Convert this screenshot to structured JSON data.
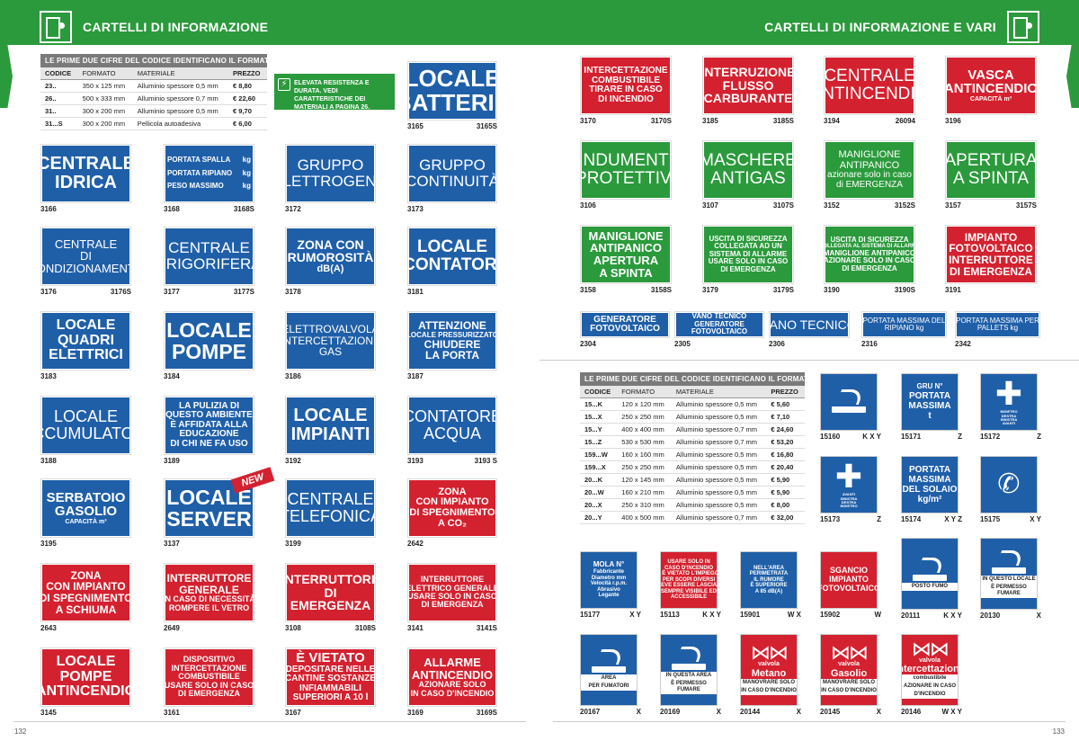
{
  "header": {
    "left_title": "CARTELLI DI INFORMAZIONE",
    "right_title": "CARTELLI DI INFORMAZIONE E VARI",
    "icon": "emergency-exit-icon"
  },
  "table_left": {
    "title": "LE PRIME DUE CIFRE DEL CODICE IDENTIFICANO IL FORMATO",
    "headers": [
      "CODICE",
      "FORMATO",
      "MATERIALE",
      "PREZZO"
    ],
    "rows": [
      [
        "23..",
        "350 x 125 mm",
        "Alluminio spessore 0,5 mm",
        "€ 8,80"
      ],
      [
        "26..",
        "500 x 333 mm",
        "Alluminio spessore 0,7 mm",
        "€ 22,60"
      ],
      [
        "31..",
        "300 x 200 mm",
        "Alluminio spessore 0,5 mm",
        "€ 9,70"
      ],
      [
        "31...S",
        "300 x 200 mm",
        "Pellicola autoadesiva",
        "€ 6,00"
      ]
    ]
  },
  "note": {
    "text": "ELEVATA RESISTENZA E DURATA. VEDI CARATTERISTICHE DEI MATERIALI A PAGINA 26.",
    "icon": "lightning-icon"
  },
  "new_badge": "NEW",
  "signs_left": [
    {
      "lines": [
        "LOCALE",
        "BATTERIE"
      ],
      "code": "3165",
      "code2": "3165S"
    },
    {
      "lines": [
        "CENTRALE",
        "IDRICA"
      ],
      "code": "3166",
      "code2": ""
    },
    {
      "lines": [
        "PORTATA SPALLA",
        "PORTATA RIPIANO",
        "PESO MASSIMO"
      ],
      "units": [
        "kg",
        "kg",
        "kg"
      ],
      "code": "3168",
      "code2": "3168S"
    },
    {
      "lines": [
        "GRUPPO",
        "ELETTROGENO"
      ],
      "code": "3172",
      "code2": ""
    },
    {
      "lines": [
        "GRUPPO",
        "CONTINUITÀ"
      ],
      "code": "3173",
      "code2": ""
    },
    {
      "lines": [
        "CENTRALE",
        "DI",
        "CONDIZIONAMENTO"
      ],
      "code": "3176",
      "code2": "3176S"
    },
    {
      "lines": [
        "CENTRALE",
        "FRIGORIFERA"
      ],
      "code": "3177",
      "code2": "3177S"
    },
    {
      "lines": [
        "ZONA CON",
        "RUMOROSITÀ",
        "dB(A)"
      ],
      "code": "3178",
      "code2": ""
    },
    {
      "lines": [
        "LOCALE",
        "CONTATORI"
      ],
      "code": "3181",
      "code2": ""
    },
    {
      "lines": [
        "LOCALE",
        "QUADRI",
        "ELETTRICI"
      ],
      "code": "3183",
      "code2": ""
    },
    {
      "lines": [
        "LOCALE",
        "POMPE"
      ],
      "code": "3184",
      "code2": ""
    },
    {
      "lines": [
        "ELETTROVALVOLA",
        "INTERCETTAZIONE",
        "GAS"
      ],
      "code": "3186",
      "code2": ""
    },
    {
      "lines": [
        "ATTENZIONE",
        "LOCALE PRESSURIZZATO",
        "CHIUDERE",
        "LA PORTA"
      ],
      "code": "3187",
      "code2": ""
    },
    {
      "lines": [
        "LOCALE",
        "ACCUMULATORI"
      ],
      "code": "3188",
      "code2": ""
    },
    {
      "lines": [
        "LA PULIZIA DI",
        "QUESTO AMBIENTE",
        "È AFFIDATA ALLA",
        "EDUCAZIONE",
        "DI CHI NE FA USO"
      ],
      "code": "3189",
      "code2": ""
    },
    {
      "lines": [
        "LOCALE",
        "IMPIANTI"
      ],
      "code": "3192",
      "code2": ""
    },
    {
      "lines": [
        "CONTATORE",
        "ACQUA"
      ],
      "code": "3193",
      "code2": "3193 S"
    },
    {
      "lines": [
        "SERBATOIO",
        "GASOLIO",
        "CAPACITÀ m³"
      ],
      "code": "3195",
      "code2": ""
    },
    {
      "lines": [
        "LOCALE",
        "SERVER"
      ],
      "code": "3137",
      "code2": ""
    },
    {
      "lines": [
        "CENTRALE",
        "TELEFONICA"
      ],
      "code": "3199",
      "code2": ""
    },
    {
      "lines": [
        "ZONA",
        "CON IMPIANTO",
        "DI SPEGNIMENTO",
        "A CO₂"
      ],
      "code": "2642",
      "code2": ""
    },
    {
      "lines": [
        "ZONA",
        "CON IMPIANTO",
        "DI SPEGNIMENTO",
        "A SCHIUMA"
      ],
      "code": "2643",
      "code2": ""
    },
    {
      "lines": [
        "INTERRUTTORE",
        "GENERALE",
        "IN CASO DI NECESSITÀ",
        "ROMPERE IL VETRO"
      ],
      "code": "2649",
      "code2": ""
    },
    {
      "lines": [
        "INTERRUTTORE",
        "DI",
        "EMERGENZA"
      ],
      "code": "3108",
      "code2": "3108S"
    },
    {
      "lines": [
        "INTERRUTTORE",
        "ELETTRICO GENERALE",
        "USARE SOLO IN CASO",
        "DI EMERGENZA"
      ],
      "code": "3141",
      "code2": "3141S"
    },
    {
      "lines": [
        "LOCALE",
        "POMPE",
        "ANTINCENDIO"
      ],
      "code": "3145",
      "code2": ""
    },
    {
      "lines": [
        "DISPOSITIVO",
        "INTERCETTAZIONE",
        "COMBUSTIBILE",
        "USARE SOLO IN CASO",
        "DI EMERGENZA"
      ],
      "code": "3161",
      "code2": ""
    },
    {
      "lines": [
        "È VIETATO",
        "DEPOSITARE NELLE",
        "CANTINE SOSTANZE",
        "INFIAMMABILI",
        "SUPERIORI A 10 l"
      ],
      "code": "3167",
      "code2": ""
    },
    {
      "lines": [
        "ALLARME",
        "ANTINCENDIO",
        "AZIONARE SOLO",
        "IN CASO D'INCENDIO"
      ],
      "code": "3169",
      "code2": "3169S"
    }
  ],
  "signs_right": [
    {
      "lines": [
        "INTERCETTAZIONE",
        "COMBUSTIBILE",
        "TIRARE IN CASO",
        "DI INCENDIO"
      ],
      "code": "3170",
      "code2": "3170S"
    },
    {
      "lines": [
        "INTERRUZIONE",
        "FLUSSO",
        "CARBURANTE"
      ],
      "code": "3185",
      "code2": "3185S"
    },
    {
      "lines": [
        "CENTRALE",
        "ANTINCENDIO"
      ],
      "code": "3194",
      "code2": "26094"
    },
    {
      "lines": [
        "VASCA",
        "ANTINCENDIO",
        "CAPACITÀ m³"
      ],
      "code": "3196",
      "code2": ""
    },
    {
      "lines": [
        "INDUMENTI",
        "PROTETTIVI"
      ],
      "code": "3106",
      "code2": ""
    },
    {
      "lines": [
        "MASCHERE",
        "ANTIGAS"
      ],
      "code": "3107",
      "code2": "3107S"
    },
    {
      "lines": [
        "MANIGLIONE",
        "ANTIPANICO",
        "azionare solo in caso",
        "di EMERGENZA"
      ],
      "code": "3152",
      "code2": "3152S"
    },
    {
      "lines": [
        "APERTURA",
        "A SPINTA"
      ],
      "code": "3157",
      "code2": "3157S"
    },
    {
      "lines": [
        "MANIGLIONE",
        "ANTIPANICO",
        "APERTURA",
        "A SPINTA"
      ],
      "code": "3158",
      "code2": "3158S"
    },
    {
      "lines": [
        "USCITA DI SICUREZZA",
        "COLLEGATA AD UN",
        "SISTEMA DI ALLARME",
        "USARE SOLO IN CASO",
        "DI EMERGENZA"
      ],
      "code": "3179",
      "code2": "3179S"
    },
    {
      "lines": [
        "USCITA DI SICUREZZA",
        "COLLEGATA AL SISTEMA DI ALLARME",
        "MANIGLIONE ANTIPANICO",
        "AZIONARE SOLO IN CASO",
        "DI EMERGENZA"
      ],
      "code": "3190",
      "code2": "3190S"
    },
    {
      "lines": [
        "IMPIANTO",
        "FOTOVOLTAICO",
        "INTERRUTTORE",
        "DI EMERGENZA"
      ],
      "code": "3191",
      "code2": ""
    },
    {
      "lines": [
        "GENERATORE",
        "FOTOVOLTAICO"
      ],
      "code": "2304",
      "code2": ""
    },
    {
      "lines": [
        "VANO TECNICO",
        "GENERATORE",
        "FOTOVOLTAICO"
      ],
      "code": "2305",
      "code2": ""
    },
    {
      "lines": [
        "VANO TECNICO"
      ],
      "code": "2306",
      "code2": ""
    },
    {
      "lines": [
        "PORTATA MASSIMA DEL",
        "RIPIANO kg"
      ],
      "code": "2316",
      "code2": ""
    },
    {
      "lines": [
        "PORTATA MASSIMA PER",
        "PALLETS kg"
      ],
      "code": "2342",
      "code2": ""
    }
  ],
  "table_right": {
    "title": "LE PRIME DUE CIFRE DEL CODICE IDENTIFICANO IL FORMATO",
    "headers": [
      "CODICE",
      "FORMATO",
      "MATERIALE",
      "PREZZO"
    ],
    "rows": [
      [
        "15...K",
        "120 x 120 mm",
        "Alluminio spessore 0,5 mm",
        "€ 5,60"
      ],
      [
        "15...X",
        "250 x 250 mm",
        "Alluminio spessore 0,5 mm",
        "€ 7,10"
      ],
      [
        "15...Y",
        "400 x 400 mm",
        "Alluminio spessore 0,7 mm",
        "€ 24,60"
      ],
      [
        "15...Z",
        "530 x 530 mm",
        "Alluminio spessore 0,7 mm",
        "€ 53,20"
      ],
      [
        "159...W",
        "160 x 160 mm",
        "Alluminio spessore 0,5 mm",
        "€ 16,80"
      ],
      [
        "159...X",
        "250 x 250 mm",
        "Alluminio spessore 0,5 mm",
        "€ 20,40"
      ],
      [
        "20...K",
        "120 x 145 mm",
        "Alluminio spessore 0,5 mm",
        "€ 5,90"
      ],
      [
        "20...W",
        "160 x 210 mm",
        "Alluminio spessore 0,5 mm",
        "€ 5,90"
      ],
      [
        "20...X",
        "250 x 310 mm",
        "Alluminio spessore 0,5 mm",
        "€ 8,00"
      ],
      [
        "20...Y",
        "400 x 500 mm",
        "Alluminio spessore 0,7 mm",
        "€ 32,00"
      ]
    ]
  },
  "icons_right": [
    {
      "icon": "no-smoking-area-icon",
      "text": [],
      "code": "15160",
      "sizes": "K X Y"
    },
    {
      "icon": "crane-load-icon",
      "text": [
        "GRU N°",
        "PORTATA",
        "MASSIMA",
        "t"
      ],
      "code": "15171",
      "sizes": "Z"
    },
    {
      "icon": "direction-arrows-icon",
      "text": [
        "INDIETRO",
        "DESTRA",
        "SINISTRA",
        "AVANTI"
      ],
      "code": "15172",
      "sizes": "Z"
    },
    {
      "icon": "direction-arrows-icon",
      "text": [
        "AVANTI",
        "SINISTRA",
        "DESTRA",
        "INDIETRO"
      ],
      "code": "15173",
      "sizes": "Z"
    },
    {
      "icon": "floor-load-icon",
      "text": [
        "PORTATA",
        "MASSIMA",
        "DEL SOLAIO",
        "kg/m²"
      ],
      "code": "15174",
      "sizes": "X Y Z"
    },
    {
      "icon": "telephone-icon",
      "text": [],
      "code": "15175",
      "sizes": "X Y"
    },
    {
      "icon": "grinding-wheel-icon",
      "text": [
        "MOLA N°",
        "Fabbricante",
        "Diametro mm",
        "Velocità r.p.m.",
        "Abrasivo",
        "Legante"
      ],
      "code": "15177",
      "sizes": "X Y"
    },
    {
      "icon": "fire-use-only-icon",
      "text": [
        "USARE SOLO IN",
        "CASO D'INCENDIO",
        "- È VIETATO L'IMPIEGO",
        "PER SCOPI DIVERSI",
        "- DEVE ESSERE LASCIATO",
        "SEMPRE VISIBILE ED",
        "ACCESSIBILE"
      ],
      "code": "15113",
      "sizes": "K X Y"
    },
    {
      "icon": "noise-area-icon",
      "text": [
        "NELL'AREA",
        "PERIMETRATA",
        "IL RUMORE",
        "È SUPERIORE",
        "A 85 dB(A)"
      ],
      "code": "15901",
      "sizes": "W X"
    },
    {
      "icon": "photovoltaic-disconnect-icon",
      "text": [
        "SGANCIO",
        "IMPIANTO",
        "FOTOVOLTAICO"
      ],
      "code": "15902",
      "sizes": "W"
    },
    {
      "icon": "smoking-post-icon",
      "text": [
        "POSTO FUMO"
      ],
      "code": "20111",
      "sizes": "K X Y"
    },
    {
      "icon": "smoking-allowed-icon",
      "text": [
        "IN QUESTO LOCALE",
        "È PERMESSO FUMARE"
      ],
      "code": "20130",
      "sizes": "X"
    },
    {
      "icon": "smoking-area-icon",
      "text": [
        "AREA",
        "PER FUMATORI"
      ],
      "code": "20167",
      "sizes": "X"
    },
    {
      "icon": "smoking-allowed-icon",
      "text": [
        "IN QUESTA AREA",
        "È PERMESSO FUMARE"
      ],
      "code": "20169",
      "sizes": "X"
    },
    {
      "icon": "gas-valve-icon",
      "text": [
        "valvola",
        "Metano",
        "MANOVRARE SOLO",
        "IN CASO D'INCENDIO"
      ],
      "code": "20144",
      "sizes": "X"
    },
    {
      "icon": "gas-valve-icon",
      "text": [
        "valvola",
        "Gasolio",
        "MANOVRARE SOLO",
        "IN CASO D'INCENDIO"
      ],
      "code": "20145",
      "sizes": "X"
    },
    {
      "icon": "gas-valve-icon",
      "text": [
        "valvola",
        "intercettazione",
        "combustibile",
        "AZIONARE IN CASO",
        "D'INCENDIO"
      ],
      "code": "20146",
      "sizes": "W X Y"
    }
  ],
  "page_numbers": {
    "left": "132",
    "right": "133"
  }
}
